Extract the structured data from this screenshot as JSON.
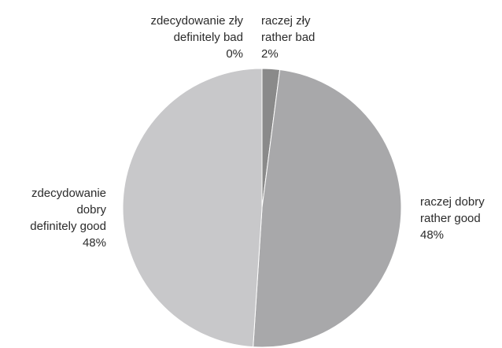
{
  "chart_data": {
    "type": "pie",
    "start": "12 o'clock",
    "direction": "clockwise",
    "slices": [
      {
        "label_pl": "zdecydowanie zły",
        "label_en": "definitely bad",
        "value": 0,
        "value_label": "0%",
        "color": "#5f5f5f"
      },
      {
        "label_pl": "raczej zły",
        "label_en": "rather bad",
        "value": 2,
        "value_label": "2%",
        "color": "#8a8a8a"
      },
      {
        "label_pl": "raczej dobry",
        "label_en": "rather good",
        "value": 48,
        "value_label": "48%",
        "color": "#a8a8aa"
      },
      {
        "label_pl": "zdecydowanie dobry",
        "label_en": "definitely good",
        "value": 48,
        "value_label": "48%",
        "color": "#c8c8ca"
      }
    ]
  }
}
